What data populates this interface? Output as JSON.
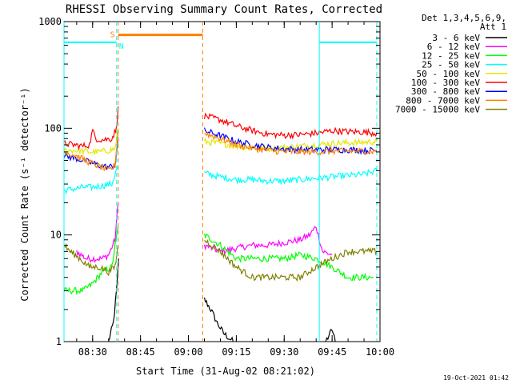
{
  "chart_data": {
    "type": "line",
    "title": "RHESSI Observing Summary Count Rates, Corrected",
    "xlabel": "Start Time (31-Aug-02 08:21:02)",
    "ylabel": "Corrected Count Rate (s⁻¹ detector⁻¹)",
    "y_scale": "log",
    "ylim": [
      1,
      1000
    ],
    "xlim": [
      "08:21:02",
      "10:00:00"
    ],
    "x_ticks": [
      "08:30",
      "08:45",
      "09:00",
      "09:15",
      "09:30",
      "09:45",
      "10:00"
    ],
    "y_ticks": [
      "1",
      "10",
      "100",
      "1000"
    ],
    "legend_header": [
      "Det 1,3,4,5,6,9,",
      "Att 1"
    ],
    "legend_position": "top-right, outside plot",
    "footer": "19-Oct-2021 01:42",
    "flags": {
      "saa": {
        "label": "S",
        "start": "08:38:00",
        "end": "09:04:30",
        "level": 750,
        "color": "#ff8000"
      },
      "night": [
        {
          "label": "N",
          "start": "08:21:02",
          "end": "08:37:30",
          "level": 640,
          "color": "#00ffff"
        },
        {
          "label": "",
          "start": "09:41:00",
          "end": "09:59:00",
          "level": 640,
          "color": "#00ffff"
        }
      ]
    },
    "series": [
      {
        "name": "3 - 6 keV",
        "color": "#000000",
        "segments": [
          [
            [
              "08:35:00",
              1
            ],
            [
              "08:36:30",
              1.5
            ],
            [
              "08:37:30",
              3
            ],
            [
              "08:38:10",
              6
            ]
          ],
          [
            [
              "09:05:00",
              2.5
            ],
            [
              "09:07:00",
              2.0
            ],
            [
              "09:09:00",
              1.5
            ],
            [
              "09:11:00",
              1.2
            ],
            [
              "09:14:00",
              1.0
            ]
          ],
          [
            [
              "09:43:00",
              1.0
            ],
            [
              "09:45:00",
              1.3
            ],
            [
              "09:46:00",
              1.0
            ]
          ]
        ]
      },
      {
        "name": "6 - 12 keV",
        "color": "#ff00ff",
        "segments": [
          [
            [
              "08:25:00",
              7
            ],
            [
              "08:28:00",
              6
            ],
            [
              "08:31:00",
              6
            ],
            [
              "08:33:00",
              6
            ],
            [
              "08:35:00",
              6.5
            ],
            [
              "08:37:00",
              9
            ],
            [
              "08:38:00",
              20
            ]
          ],
          [
            [
              "09:05:00",
              8
            ],
            [
              "09:10:00",
              7
            ],
            [
              "09:15:00",
              7.5
            ],
            [
              "09:20:00",
              8
            ],
            [
              "09:25:00",
              8
            ],
            [
              "09:30:00",
              8.5
            ],
            [
              "09:35:00",
              9
            ],
            [
              "09:38:00",
              10
            ],
            [
              "09:40:00",
              12
            ],
            [
              "09:42:00",
              7
            ],
            [
              "09:45:00",
              6.5
            ]
          ]
        ]
      },
      {
        "name": "12 - 25 keV",
        "color": "#00ff00",
        "segments": [
          [
            [
              "08:21:02",
              3
            ],
            [
              "08:27:00",
              3
            ],
            [
              "08:30:00",
              3.5
            ],
            [
              "08:33:00",
              4.5
            ],
            [
              "08:36:00",
              5
            ],
            [
              "08:38:00",
              12
            ]
          ],
          [
            [
              "09:05:00",
              10
            ],
            [
              "09:10:00",
              8
            ],
            [
              "09:15:00",
              6
            ],
            [
              "09:20:00",
              6
            ],
            [
              "09:25:00",
              6
            ],
            [
              "09:30:00",
              6
            ],
            [
              "09:35:00",
              6.5
            ],
            [
              "09:40:00",
              6
            ],
            [
              "09:45:00",
              5
            ],
            [
              "09:50:00",
              4
            ],
            [
              "09:58:00",
              4
            ]
          ]
        ]
      },
      {
        "name": "25 - 50 keV",
        "color": "#00ffff",
        "segments": [
          [
            [
              "08:21:02",
              26
            ],
            [
              "08:24:00",
              27
            ],
            [
              "08:27:00",
              28
            ],
            [
              "08:30:00",
              28
            ],
            [
              "08:33:00",
              29
            ],
            [
              "08:36:00",
              30
            ],
            [
              "08:38:00",
              45
            ]
          ],
          [
            [
              "09:05:00",
              38
            ],
            [
              "09:10:00",
              35
            ],
            [
              "09:15:00",
              33
            ],
            [
              "09:20:00",
              33
            ],
            [
              "09:25:00",
              32
            ],
            [
              "09:30:00",
              32
            ],
            [
              "09:35:00",
              33
            ],
            [
              "09:40:00",
              34
            ],
            [
              "09:45:00",
              35
            ],
            [
              "09:50:00",
              36
            ],
            [
              "09:55:00",
              37
            ],
            [
              "09:59:00",
              40
            ]
          ]
        ]
      },
      {
        "name": "50 - 100 keV",
        "color": "#e6e600",
        "segments": [
          [
            [
              "08:21:02",
              62
            ],
            [
              "08:25:00",
              62
            ],
            [
              "08:29:00",
              60
            ],
            [
              "08:32:00",
              60
            ],
            [
              "08:35:00",
              62
            ],
            [
              "08:37:00",
              64
            ],
            [
              "08:38:00",
              100
            ]
          ],
          [
            [
              "09:05:00",
              75
            ],
            [
              "09:10:00",
              72
            ],
            [
              "09:15:00",
              68
            ],
            [
              "09:20:00",
              66
            ],
            [
              "09:25:00",
              65
            ],
            [
              "09:30:00",
              66
            ],
            [
              "09:35:00",
              68
            ],
            [
              "09:40:00",
              70
            ],
            [
              "09:45:00",
              72
            ],
            [
              "09:50:00",
              73
            ],
            [
              "09:55:00",
              74
            ],
            [
              "09:59:00",
              75
            ]
          ]
        ]
      },
      {
        "name": "100 - 300 keV",
        "color": "#ff0000",
        "segments": [
          [
            [
              "08:21:02",
              72
            ],
            [
              "08:24:00",
              70
            ],
            [
              "08:27:00",
              68
            ],
            [
              "08:29:00",
              70
            ],
            [
              "08:30:00",
              95
            ],
            [
              "08:31:00",
              80
            ],
            [
              "08:33:00",
              78
            ],
            [
              "08:36:00",
              80
            ],
            [
              "08:37:30",
              100
            ],
            [
              "08:38:00",
              160
            ]
          ],
          [
            [
              "09:05:00",
              130
            ],
            [
              "09:10:00",
              120
            ],
            [
              "09:15:00",
              105
            ],
            [
              "09:20:00",
              95
            ],
            [
              "09:25:00",
              88
            ],
            [
              "09:30:00",
              86
            ],
            [
              "09:35:00",
              87
            ],
            [
              "09:40:00",
              90
            ],
            [
              "09:45:00",
              95
            ],
            [
              "09:50:00",
              93
            ],
            [
              "09:55:00",
              92
            ],
            [
              "09:59:00",
              90
            ]
          ]
        ]
      },
      {
        "name": "300 - 800 keV",
        "color": "#0000ff",
        "segments": [
          [
            [
              "08:21:02",
              55
            ],
            [
              "08:25:00",
              52
            ],
            [
              "08:29:00",
              48
            ],
            [
              "08:32:00",
              45
            ],
            [
              "08:35:00",
              43
            ],
            [
              "08:37:00",
              45
            ],
            [
              "08:38:00",
              80
            ]
          ],
          [
            [
              "09:05:00",
              95
            ],
            [
              "09:10:00",
              85
            ],
            [
              "09:15:00",
              75
            ],
            [
              "09:20:00",
              70
            ],
            [
              "09:25:00",
              66
            ],
            [
              "09:30:00",
              64
            ],
            [
              "09:35:00",
              63
            ],
            [
              "09:40:00",
              63
            ],
            [
              "09:45:00",
              63
            ],
            [
              "09:50:00",
              63
            ],
            [
              "09:55:00",
              62
            ],
            [
              "09:59:00",
              62
            ]
          ]
        ]
      },
      {
        "name": "800 - 7000 keV",
        "color": "#ff8000",
        "segments": [
          [
            [
              "08:21:02",
              60
            ],
            [
              "08:25:00",
              55
            ],
            [
              "08:29:00",
              48
            ],
            [
              "08:32:00",
              44
            ],
            [
              "08:35:00",
              40
            ],
            [
              "08:37:00",
              45
            ],
            [
              "08:38:00",
              95
            ]
          ],
          [
            [
              "09:05:00",
              90
            ],
            [
              "09:10:00",
              80
            ],
            [
              "09:15:00",
              70
            ],
            [
              "09:20:00",
              65
            ],
            [
              "09:25:00",
              62
            ],
            [
              "09:30:00",
              60
            ],
            [
              "09:35:00",
              60
            ],
            [
              "09:40:00",
              60
            ],
            [
              "09:45:00",
              61
            ],
            [
              "09:50:00",
              61
            ],
            [
              "09:55:00",
              61
            ],
            [
              "09:59:00",
              61
            ]
          ]
        ]
      },
      {
        "name": "7000 - 15000 keV",
        "color": "#808000",
        "segments": [
          [
            [
              "08:21:02",
              8
            ],
            [
              "08:23:00",
              7
            ],
            [
              "08:26:00",
              6
            ],
            [
              "08:29:00",
              5
            ],
            [
              "08:32:00",
              5
            ],
            [
              "08:35:00",
              4.5
            ],
            [
              "08:37:00",
              5
            ],
            [
              "08:38:00",
              8
            ]
          ],
          [
            [
              "09:05:00",
              9
            ],
            [
              "09:10:00",
              7
            ],
            [
              "09:15:00",
              5
            ],
            [
              "09:20:00",
              4
            ],
            [
              "09:25:00",
              4
            ],
            [
              "09:30:00",
              4
            ],
            [
              "09:35:00",
              4
            ],
            [
              "09:40:00",
              5
            ],
            [
              "09:45:00",
              6
            ],
            [
              "09:50:00",
              7
            ],
            [
              "09:55:00",
              7
            ],
            [
              "09:59:00",
              7
            ]
          ]
        ]
      }
    ]
  }
}
